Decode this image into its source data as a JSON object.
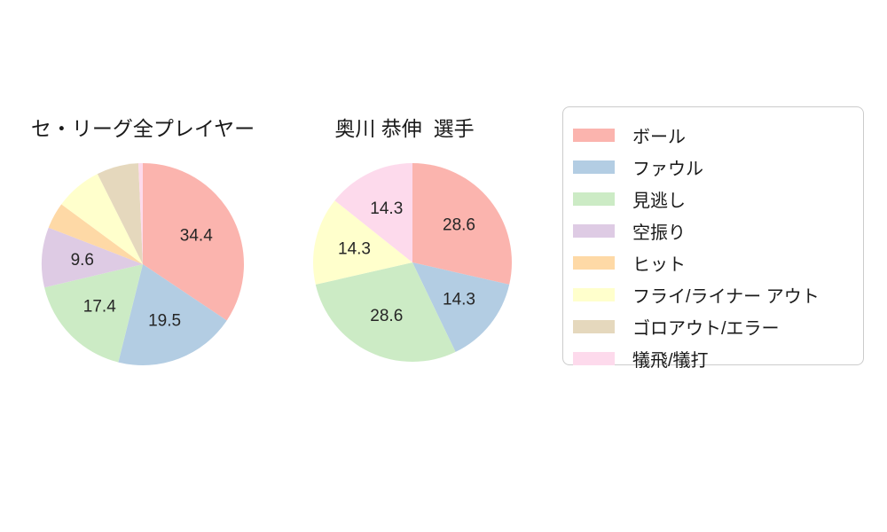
{
  "figure": {
    "background": "#ffffff",
    "text_color": "#1a1a1a"
  },
  "chart_data": [
    {
      "type": "pie",
      "title": "セ・リーグ全プレイヤー",
      "direction": "clockwise",
      "start_angle": "12-oclock",
      "legend_position": "right",
      "slices": [
        {
          "name": "ボール",
          "value": 34.4,
          "text": "34.4",
          "color": "#fbb4ae"
        },
        {
          "name": "ファウル",
          "value": 19.5,
          "text": "19.5",
          "color": "#b3cde3"
        },
        {
          "name": "見逃し",
          "value": 17.4,
          "text": "17.4",
          "color": "#ccebc5"
        },
        {
          "name": "空振り",
          "value": 9.6,
          "text": "9.6",
          "color": "#decbe4"
        },
        {
          "name": "ヒット",
          "value": 4.2,
          "text": "",
          "color": "#fed9a6"
        },
        {
          "name": "フライ/ライナー アウト",
          "value": 7.5,
          "text": "",
          "color": "#ffffcc"
        },
        {
          "name": "ゴロアウト/エラー",
          "value": 6.7,
          "text": "",
          "color": "#e5d8bd"
        },
        {
          "name": "犠飛/犠打",
          "value": 0.7,
          "text": "",
          "color": "#fddaec"
        }
      ]
    },
    {
      "type": "pie",
      "title": "奥川 恭伸  選手",
      "direction": "clockwise",
      "start_angle": "12-oclock",
      "legend_position": "right",
      "slices": [
        {
          "name": "ボール",
          "value": 28.6,
          "text": "28.6",
          "color": "#fbb4ae"
        },
        {
          "name": "ファウル",
          "value": 14.3,
          "text": "14.3",
          "color": "#b3cde3"
        },
        {
          "name": "見逃し",
          "value": 28.6,
          "text": "28.6",
          "color": "#ccebc5"
        },
        {
          "name": "フライ/ライナー アウト",
          "value": 14.3,
          "text": "14.3",
          "color": "#ffffcc"
        },
        {
          "name": "犠飛/犠打",
          "value": 14.3,
          "text": "14.3",
          "color": "#fddaec"
        }
      ]
    }
  ],
  "legend": {
    "items": [
      {
        "label": "ボール",
        "color": "#fbb4ae"
      },
      {
        "label": "ファウル",
        "color": "#b3cde3"
      },
      {
        "label": "見逃し",
        "color": "#ccebc5"
      },
      {
        "label": "空振り",
        "color": "#decbe4"
      },
      {
        "label": "ヒット",
        "color": "#fed9a6"
      },
      {
        "label": "フライ/ライナー アウト",
        "color": "#ffffcc"
      },
      {
        "label": "ゴロアウト/エラー",
        "color": "#e5d8bd"
      },
      {
        "label": "犠飛/犠打",
        "color": "#fddaec"
      }
    ]
  }
}
